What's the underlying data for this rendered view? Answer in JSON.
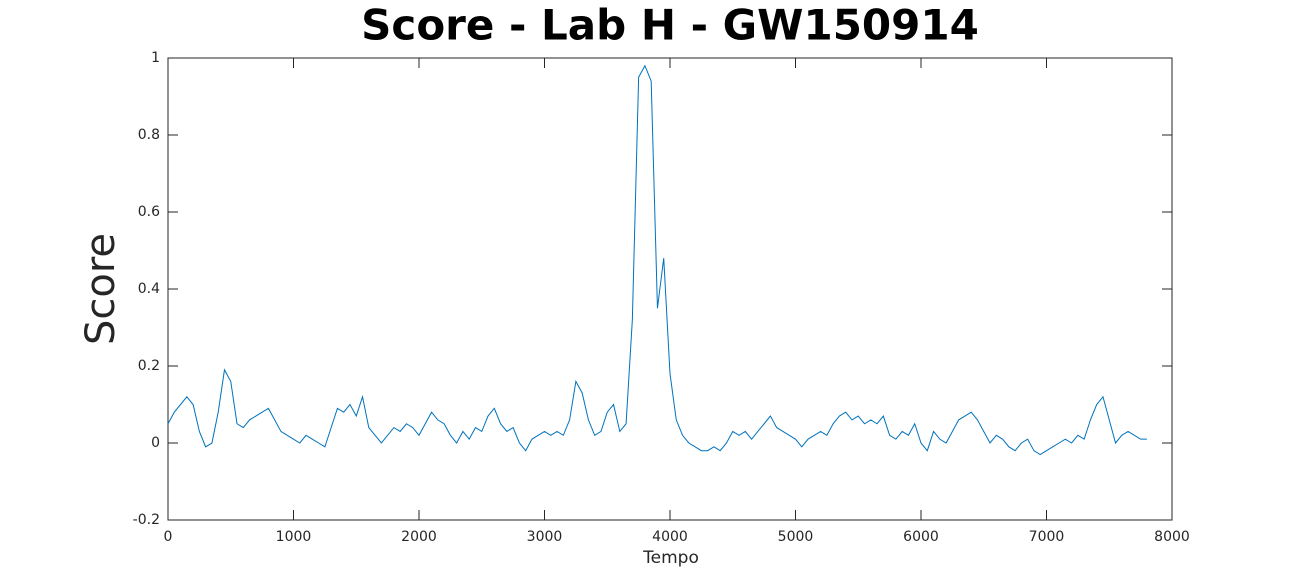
{
  "chart_data": {
    "type": "line",
    "title": "Score - Lab H - GW150914",
    "xlabel": "Tempo",
    "ylabel": "Score",
    "x": [
      0,
      50,
      100,
      150,
      200,
      250,
      300,
      350,
      400,
      450,
      500,
      550,
      600,
      650,
      700,
      750,
      800,
      850,
      900,
      950,
      1000,
      1050,
      1100,
      1150,
      1200,
      1250,
      1300,
      1350,
      1400,
      1450,
      1500,
      1550,
      1600,
      1650,
      1700,
      1750,
      1800,
      1850,
      1900,
      1950,
      2000,
      2050,
      2100,
      2150,
      2200,
      2250,
      2300,
      2350,
      2400,
      2450,
      2500,
      2550,
      2600,
      2650,
      2700,
      2750,
      2800,
      2850,
      2900,
      2950,
      3000,
      3050,
      3100,
      3150,
      3200,
      3250,
      3300,
      3350,
      3400,
      3450,
      3500,
      3550,
      3600,
      3650,
      3700,
      3750,
      3800,
      3850,
      3900,
      3950,
      4000,
      4050,
      4100,
      4150,
      4200,
      4250,
      4300,
      4350,
      4400,
      4450,
      4500,
      4550,
      4600,
      4650,
      4700,
      4750,
      4800,
      4850,
      4900,
      4950,
      5000,
      5050,
      5100,
      5150,
      5200,
      5250,
      5300,
      5350,
      5400,
      5450,
      5500,
      5550,
      5600,
      5650,
      5700,
      5750,
      5800,
      5850,
      5900,
      5950,
      6000,
      6050,
      6100,
      6150,
      6200,
      6250,
      6300,
      6350,
      6400,
      6450,
      6500,
      6550,
      6600,
      6650,
      6700,
      6750,
      6800,
      6850,
      6900,
      6950,
      7000,
      7050,
      7100,
      7150,
      7200,
      7250,
      7300,
      7350,
      7400,
      7450,
      7500,
      7550,
      7600,
      7650,
      7700,
      7750,
      7800
    ],
    "series": [
      {
        "name": "Score",
        "color": "#0072bd",
        "values": [
          0.05,
          0.08,
          0.1,
          0.12,
          0.1,
          0.03,
          -0.01,
          0.0,
          0.08,
          0.19,
          0.16,
          0.05,
          0.04,
          0.06,
          0.07,
          0.08,
          0.09,
          0.06,
          0.03,
          0.02,
          0.01,
          0.0,
          0.02,
          0.01,
          0.0,
          -0.01,
          0.04,
          0.09,
          0.08,
          0.1,
          0.07,
          0.12,
          0.04,
          0.02,
          0.0,
          0.02,
          0.04,
          0.03,
          0.05,
          0.04,
          0.02,
          0.05,
          0.08,
          0.06,
          0.05,
          0.02,
          0.0,
          0.03,
          0.01,
          0.04,
          0.03,
          0.07,
          0.09,
          0.05,
          0.03,
          0.04,
          0.0,
          -0.02,
          0.01,
          0.02,
          0.03,
          0.02,
          0.03,
          0.02,
          0.06,
          0.16,
          0.13,
          0.06,
          0.02,
          0.03,
          0.08,
          0.1,
          0.03,
          0.05,
          0.32,
          0.95,
          0.98,
          0.94,
          0.35,
          0.48,
          0.18,
          0.06,
          0.02,
          0.0,
          -0.01,
          -0.02,
          -0.02,
          -0.01,
          -0.02,
          0.0,
          0.03,
          0.02,
          0.03,
          0.01,
          0.03,
          0.05,
          0.07,
          0.04,
          0.03,
          0.02,
          0.01,
          -0.01,
          0.01,
          0.02,
          0.03,
          0.02,
          0.05,
          0.07,
          0.08,
          0.06,
          0.07,
          0.05,
          0.06,
          0.05,
          0.07,
          0.02,
          0.01,
          0.03,
          0.02,
          0.05,
          0.0,
          -0.02,
          0.03,
          0.01,
          0.0,
          0.03,
          0.06,
          0.07,
          0.08,
          0.06,
          0.03,
          0.0,
          0.02,
          0.01,
          -0.01,
          -0.02,
          0.0,
          0.01,
          -0.02,
          -0.03,
          -0.02,
          -0.01,
          0.0,
          0.01,
          0.0,
          0.02,
          0.01,
          0.06,
          0.1,
          0.12,
          0.06,
          0.0,
          0.02,
          0.03,
          0.02,
          0.01,
          0.01
        ]
      }
    ],
    "xlim": [
      0,
      8000
    ],
    "xticks": [
      0,
      1000,
      2000,
      3000,
      4000,
      5000,
      6000,
      7000,
      8000
    ],
    "ylim": [
      -0.2,
      1
    ],
    "yticks": [
      -0.2,
      0,
      0.2,
      0.4,
      0.6,
      0.8,
      1
    ],
    "grid": false
  }
}
